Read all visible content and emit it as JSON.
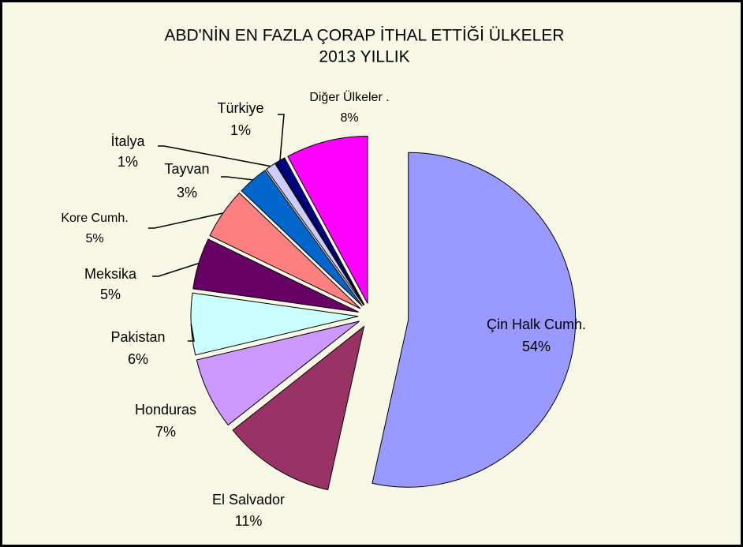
{
  "chart_data": {
    "type": "pie",
    "title": "ABD'NİN EN FAZLA ÇORAP İTHAL ETTİĞİ ÜLKELER",
    "subtitle": "2013 YILLIK",
    "categories": [
      "Çin Halk Cumh.",
      "El Salvador",
      "Honduras",
      "Pakistan",
      "Meksika",
      "Kore Cumh.",
      "Tayvan",
      "İtalya",
      "Türkiye",
      "Diğer Ülkeler ."
    ],
    "values": [
      54,
      11,
      7,
      6,
      5,
      5,
      3,
      1,
      1,
      8
    ],
    "value_labels": [
      "54%",
      "11%",
      "7%",
      "6%",
      "5%",
      "5%",
      "3%",
      "1%",
      "1%",
      "8%"
    ],
    "colors": [
      "#9999ff",
      "#993366",
      "#cc99ff",
      "#ccffff",
      "#660066",
      "#ff8080",
      "#0066cc",
      "#ccccff",
      "#000080",
      "#ff00ff"
    ]
  }
}
